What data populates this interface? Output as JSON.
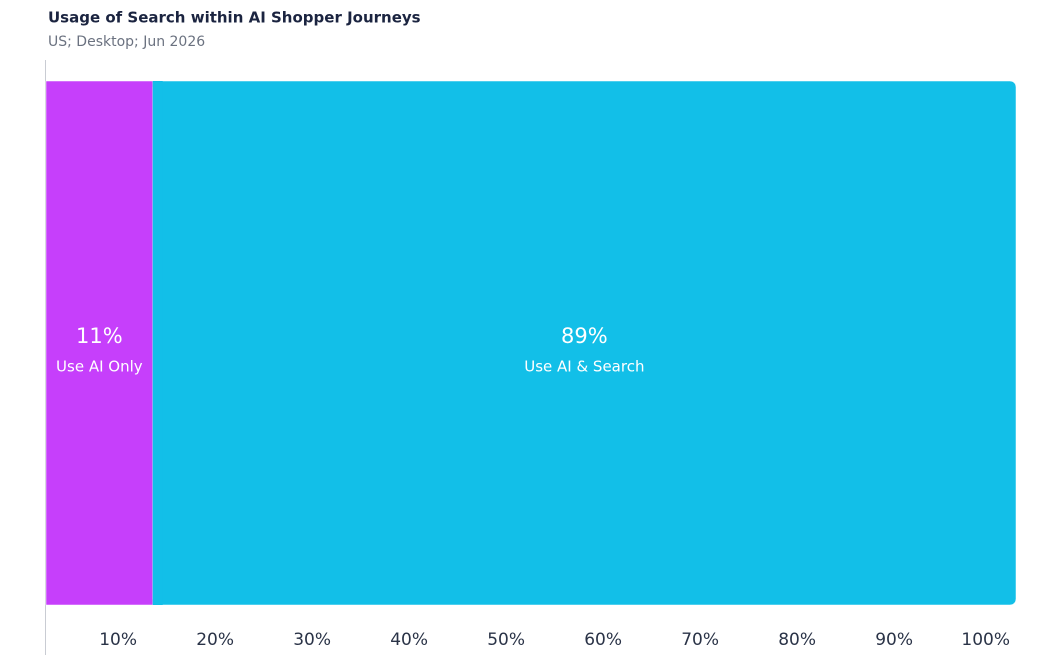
{
  "chart_data": {
    "type": "bar",
    "orientation": "horizontal",
    "stacked": true,
    "title": "Usage of Search within AI Shopper Journeys",
    "subtitle": "US; Desktop; Jun 2026",
    "series": [
      {
        "name": "Use AI Only",
        "color": "#c63ffb",
        "values": [
          11
        ],
        "value_labels": [
          "11%"
        ]
      },
      {
        "name": "Use AI & Search",
        "color": "#12bfe8",
        "values": [
          89
        ],
        "value_labels": [
          "89%"
        ]
      }
    ],
    "xlim": [
      0,
      100
    ],
    "xticks": [
      {
        "value": 10,
        "label": "10%"
      },
      {
        "value": 20,
        "label": "20%"
      },
      {
        "value": 30,
        "label": "30%"
      },
      {
        "value": 40,
        "label": "40%"
      },
      {
        "value": 50,
        "label": "50%"
      },
      {
        "value": 60,
        "label": "60%"
      },
      {
        "value": 70,
        "label": "70%"
      },
      {
        "value": 80,
        "label": "80%"
      },
      {
        "value": 90,
        "label": "90%"
      },
      {
        "value": 100,
        "label": "100%"
      }
    ]
  }
}
